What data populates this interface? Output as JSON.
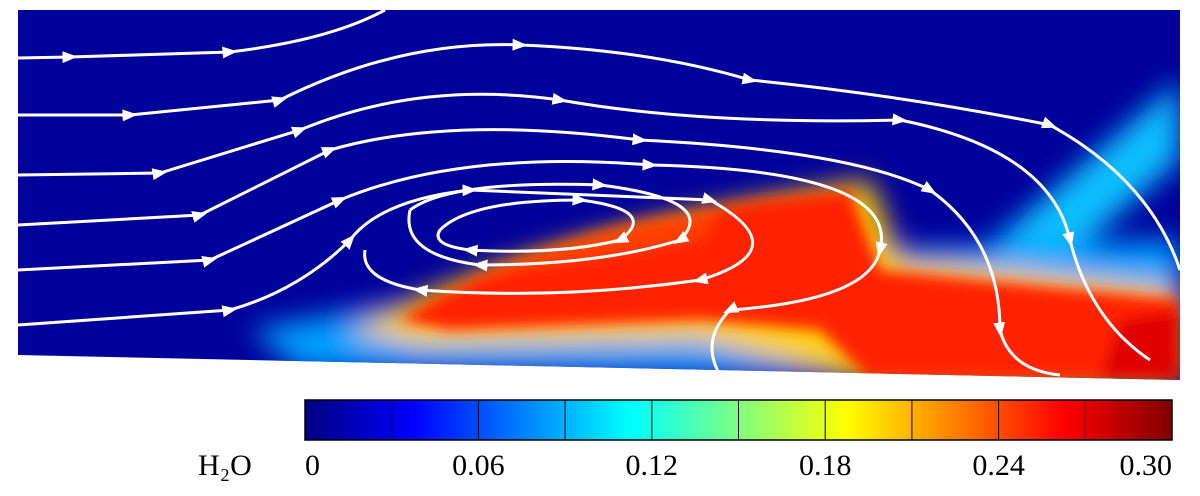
{
  "chart_data": {
    "type": "contour",
    "colorbar_label": "H₂O",
    "clim": [
      0,
      0.3
    ],
    "colormap": [
      "#00007f",
      "#0000ff",
      "#007fff",
      "#00ffff",
      "#7fff7f",
      "#ffff00",
      "#ff7f00",
      "#ff0000",
      "#7f0000"
    ],
    "clevels": [
      0,
      0.03,
      0.06,
      0.09,
      0.12,
      0.15,
      0.18,
      0.21,
      0.24,
      0.27,
      0.3
    ],
    "cticks": [
      0,
      0.06,
      0.12,
      0.18,
      0.24,
      {
        "value": 0.3,
        "label": "0.30"
      }
    ]
  }
}
